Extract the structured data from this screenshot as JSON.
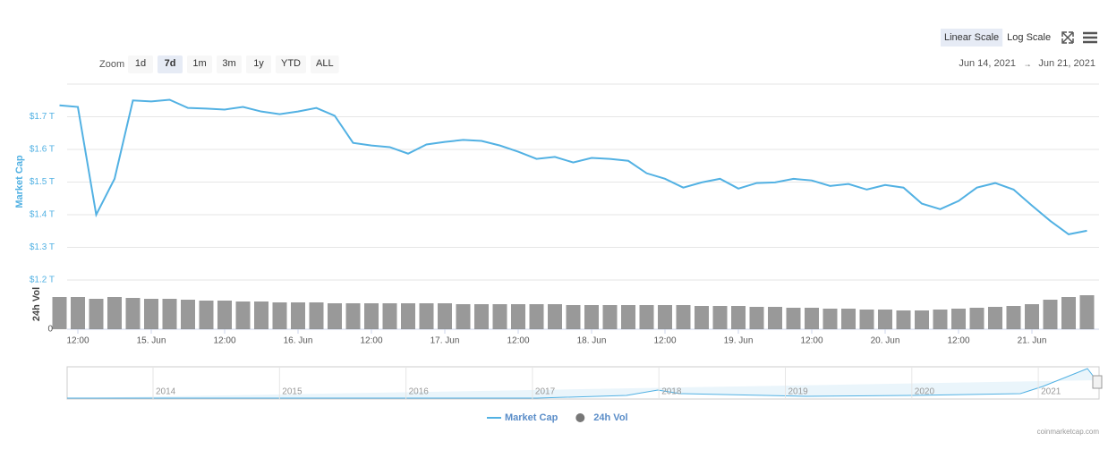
{
  "chart_data": {
    "type": "line",
    "categories": [
      null,
      "12:00",
      null,
      null,
      null,
      "15. Jun",
      null,
      null,
      null,
      "12:00",
      null,
      null,
      null,
      "16. Jun",
      null,
      null,
      null,
      "12:00",
      null,
      null,
      null,
      "17. Jun",
      null,
      null,
      null,
      "12:00",
      null,
      null,
      null,
      "18. Jun",
      null,
      null,
      null,
      "12:00",
      null,
      null,
      null,
      "19. Jun",
      null,
      null,
      null,
      "12:00",
      null,
      null,
      null,
      "20. Jun",
      null,
      null,
      null,
      "12:00",
      null,
      null,
      null,
      "21. Jun",
      null,
      null,
      null
    ],
    "series": [
      {
        "name": "Market Cap",
        "color": "#52b1e3",
        "axis": "y",
        "values": [
          1.735,
          1.73,
          1.4,
          1.51,
          1.75,
          1.747,
          1.752,
          1.727,
          1.725,
          1.722,
          1.73,
          1.716,
          1.708,
          1.716,
          1.727,
          1.703,
          1.62,
          1.612,
          1.607,
          1.587,
          1.615,
          1.623,
          1.629,
          1.626,
          1.612,
          1.593,
          1.571,
          1.577,
          1.56,
          1.574,
          1.571,
          1.565,
          1.527,
          1.51,
          1.483,
          1.499,
          1.51,
          1.48,
          1.497,
          1.499,
          1.51,
          1.505,
          1.488,
          1.494,
          1.477,
          1.491,
          1.483,
          1.434,
          1.417,
          1.442,
          1.483,
          1.497,
          1.477,
          1.428,
          1.381,
          1.34,
          1.351
        ]
      },
      {
        "name": "24h Vol",
        "color": "#777777",
        "axis": "y2",
        "values": [
          36,
          36,
          34,
          36,
          35,
          34,
          34,
          33,
          32,
          32,
          31,
          31,
          30,
          30,
          30,
          29,
          29,
          29,
          29,
          29,
          29,
          29,
          28,
          28,
          28,
          28,
          28,
          28,
          27,
          27,
          27,
          27,
          27,
          27,
          27,
          26,
          26,
          26,
          25,
          25,
          24,
          24,
          23,
          23,
          22,
          22,
          21,
          21,
          22,
          23,
          24,
          25,
          26,
          28,
          33,
          36,
          38
        ]
      }
    ],
    "ylabel": "Market Cap",
    "y2label": "24h Vol",
    "ylim": [
      1.2,
      1.8
    ],
    "yticks": [
      {
        "value": 1.2,
        "label": "$1.2 T"
      },
      {
        "value": 1.3,
        "label": "$1.3 T"
      },
      {
        "value": 1.4,
        "label": "$1.4 T"
      },
      {
        "value": 1.5,
        "label": "$1.5 T"
      },
      {
        "value": 1.6,
        "label": "$1.6 T"
      },
      {
        "value": 1.7,
        "label": "$1.7 T"
      }
    ],
    "y2lim": [
      0,
      55
    ],
    "y2ticks": [
      0
    ],
    "grid": true
  },
  "toolbar": {
    "zoom_label": "Zoom",
    "zoom_buttons": [
      "1d",
      "7d",
      "1m",
      "3m",
      "1y",
      "YTD",
      "ALL"
    ],
    "selected": 1,
    "scales": [
      "Linear Scale",
      "Log Scale"
    ],
    "from": "Jun 14, 2021",
    "separator": "→",
    "to": "Jun 21, 2021"
  },
  "navigator": {
    "labels": [
      "2014",
      "2015",
      "2016",
      "2017",
      "2018",
      "2019",
      "2020",
      "2021"
    ]
  },
  "credit": "coinmarketcap.com"
}
